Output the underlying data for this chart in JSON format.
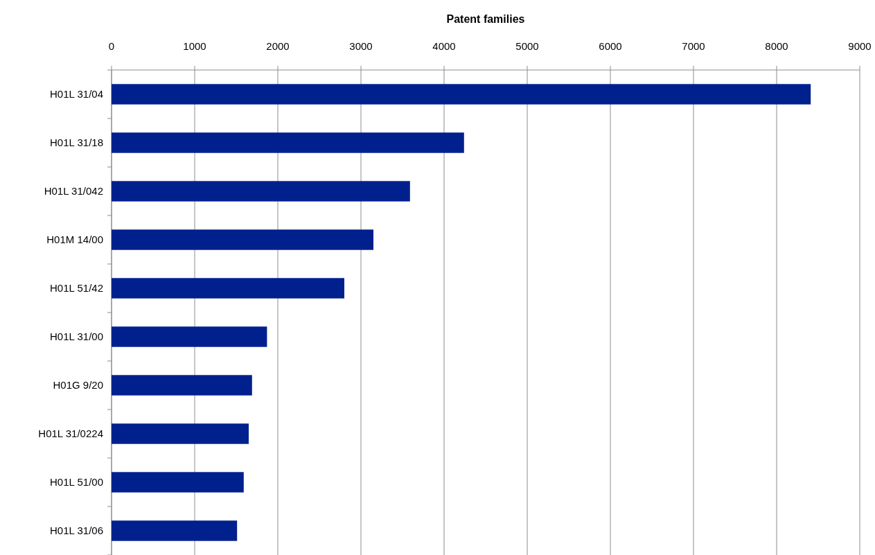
{
  "chart_data": {
    "type": "bar",
    "orientation": "horizontal",
    "xlabel": "Patent families",
    "categories": [
      "H01L 31/04",
      "H01L 31/18",
      "H01L 31/042",
      "H01M 14/00",
      "H01L 51/42",
      "H01L 31/00",
      "H01G 9/20",
      "H01L 31/0224",
      "H01L 51/00",
      "H01L 31/06"
    ],
    "values": [
      8410,
      4240,
      3590,
      3150,
      2800,
      1870,
      1690,
      1650,
      1590,
      1510
    ],
    "color": "#00208e",
    "xlim": [
      0,
      9000
    ],
    "xticks": [
      0,
      1000,
      2000,
      3000,
      4000,
      5000,
      6000,
      7000,
      8000,
      9000
    ],
    "grid": "x"
  }
}
